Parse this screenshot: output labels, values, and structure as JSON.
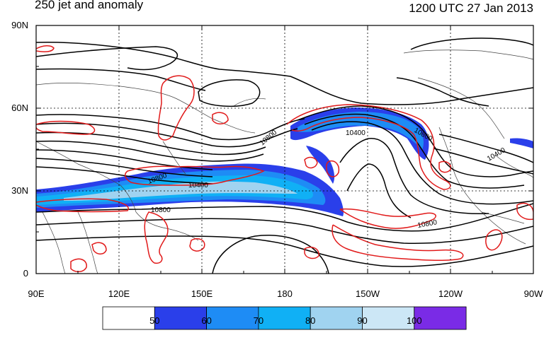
{
  "title_left": "250 jet and anomaly",
  "title_right": "1200 UTC 27 Jan 2013",
  "lat_labels": [
    "90N",
    "60N",
    "30N",
    "0"
  ],
  "lon_labels": [
    "90E",
    "120E",
    "150E",
    "180",
    "150W",
    "120W",
    "90W"
  ],
  "contour_labels": [
    "10800",
    "10400",
    "10800",
    "10800",
    "10400",
    "10800",
    "10400",
    "10800"
  ],
  "colorbar": {
    "tick_labels": [
      "50",
      "60",
      "70",
      "80",
      "90",
      "100"
    ],
    "colors": [
      "#ffffff",
      "#2a3fea",
      "#1e8cf5",
      "#10b0f5",
      "#a0d3f0",
      "#cce7f6",
      "#7a2be6"
    ]
  },
  "style": {
    "height_contour_color": "#000000",
    "anomaly_contour_color": "#e11a1a",
    "coastline_color": "#444444"
  }
}
